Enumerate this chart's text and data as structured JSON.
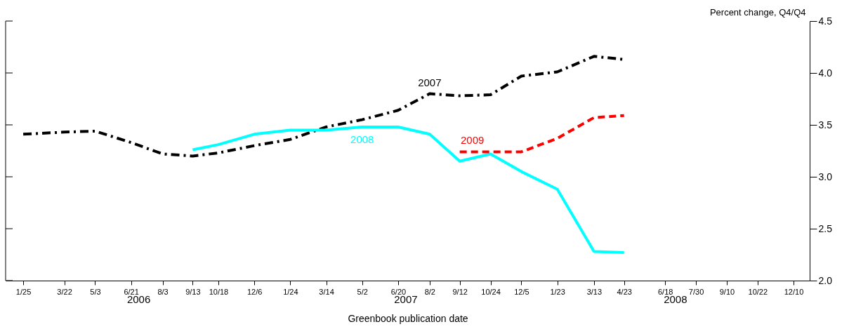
{
  "chart_data": {
    "type": "line",
    "xlabel": "Greenbook publication date",
    "ylabel": "Percent change, Q4/Q4",
    "x": [
      "2006-01-25",
      "2006-03-22",
      "2006-05-03",
      "2006-06-21",
      "2006-08-03",
      "2006-09-13",
      "2006-10-18",
      "2006-12-06",
      "2007-01-24",
      "2007-03-14",
      "2007-05-02",
      "2007-06-20",
      "2007-08-02",
      "2007-09-12",
      "2007-10-24",
      "2007-12-05",
      "2008-01-23",
      "2008-03-13",
      "2008-04-23"
    ],
    "series": [
      {
        "name": "2007",
        "color": "#000000",
        "line_style": "dashdot",
        "values": [
          3.41,
          3.43,
          3.44,
          3.33,
          3.22,
          3.2,
          3.23,
          3.3,
          3.36,
          3.48,
          3.55,
          3.64,
          3.8,
          3.78,
          3.79,
          3.97,
          4.01,
          4.16,
          4.13
        ]
      },
      {
        "name": "2008",
        "color": "#00ffff",
        "line_style": "solid",
        "values": [
          null,
          null,
          null,
          null,
          null,
          3.26,
          3.31,
          3.41,
          3.45,
          3.45,
          3.48,
          3.48,
          3.41,
          3.15,
          3.22,
          3.05,
          2.88,
          2.28,
          2.27
        ]
      },
      {
        "name": "2009",
        "color": "#ff0000",
        "line_style": "dashed",
        "values": [
          null,
          null,
          null,
          null,
          null,
          null,
          null,
          null,
          null,
          null,
          null,
          null,
          null,
          3.24,
          3.24,
          3.24,
          3.37,
          3.57,
          3.59
        ]
      }
    ],
    "xlim": [
      "2006-01-01",
      "2009-01-01"
    ],
    "xticks": [
      {
        "value": "2006-01-25",
        "label": "1/25"
      },
      {
        "value": "2006-03-22",
        "label": "3/22"
      },
      {
        "value": "2006-05-03",
        "label": "5/3"
      },
      {
        "value": "2006-06-21",
        "label": "6/21"
      },
      {
        "value": "2006-08-03",
        "label": "8/3"
      },
      {
        "value": "2006-09-13",
        "label": "9/13"
      },
      {
        "value": "2006-10-18",
        "label": "10/18"
      },
      {
        "value": "2006-12-06",
        "label": "12/6"
      },
      {
        "value": "2007-01-24",
        "label": "1/24"
      },
      {
        "value": "2007-03-14",
        "label": "3/14"
      },
      {
        "value": "2007-05-02",
        "label": "5/2"
      },
      {
        "value": "2007-06-20",
        "label": "6/20"
      },
      {
        "value": "2007-08-02",
        "label": "8/2"
      },
      {
        "value": "2007-09-12",
        "label": "9/12"
      },
      {
        "value": "2007-10-24",
        "label": "10/24"
      },
      {
        "value": "2007-12-05",
        "label": "12/5"
      },
      {
        "value": "2008-01-23",
        "label": "1/23"
      },
      {
        "value": "2008-03-13",
        "label": "3/13"
      },
      {
        "value": "2008-04-23",
        "label": "4/23"
      },
      {
        "value": "2008-06-18",
        "label": "6/18"
      },
      {
        "value": "2008-07-30",
        "label": "7/30"
      },
      {
        "value": "2008-09-10",
        "label": "9/10"
      },
      {
        "value": "2008-10-22",
        "label": "10/22"
      },
      {
        "value": "2008-12-10",
        "label": "12/10"
      }
    ],
    "ylim": [
      2.0,
      4.5
    ],
    "yticks": [
      {
        "value": 2.0,
        "label": "2.0"
      },
      {
        "value": 2.5,
        "label": "2.5"
      },
      {
        "value": 3.0,
        "label": "3.0"
      },
      {
        "value": 3.5,
        "label": "3.5"
      },
      {
        "value": 4.0,
        "label": "4.0"
      },
      {
        "value": 4.5,
        "label": "4.5"
      }
    ],
    "annotations": [
      "2006",
      "2007",
      "2008"
    ],
    "grid": false,
    "legend": false,
    "marker": "none"
  }
}
